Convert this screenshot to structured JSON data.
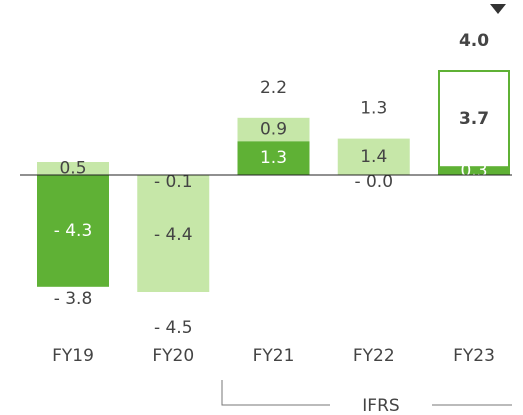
{
  "chart_data": {
    "type": "stacked-bar",
    "categories": [
      "FY19",
      "FY20",
      "FY21",
      "FY22",
      "FY23"
    ],
    "series": [
      {
        "color": "#5fb135",
        "values": [
          -4.3,
          null,
          1.3,
          null,
          0.3
        ],
        "value_labels": [
          "- 4.3",
          null,
          "1.3",
          null,
          "0.3"
        ]
      },
      {
        "color": "#c6e7a8",
        "values": [
          null,
          -0.1,
          null,
          0,
          null
        ],
        "value_labels": [
          null,
          "- 0.1",
          null,
          "- 0.0",
          null
        ]
      },
      {
        "color": "#c6e7a8",
        "values": [
          0.5,
          -4.4,
          0.9,
          1.4,
          null
        ],
        "value_labels": [
          "0.5",
          "- 4.4",
          "0.9",
          "1.4",
          null
        ]
      },
      {
        "color": "#5fb135",
        "style": "outline",
        "values": [
          null,
          null,
          null,
          null,
          3.7
        ],
        "value_labels": [
          null,
          null,
          null,
          null,
          "3.7"
        ]
      }
    ],
    "totals": [
      -3.8,
      -4.5,
      2.2,
      1.3,
      4.0
    ],
    "total_labels": [
      "- 3.8",
      "- 4.5",
      "2.2",
      "1.3",
      "4.0"
    ],
    "bold_categories": [
      "FY23"
    ],
    "annotation": "IFRS"
  }
}
